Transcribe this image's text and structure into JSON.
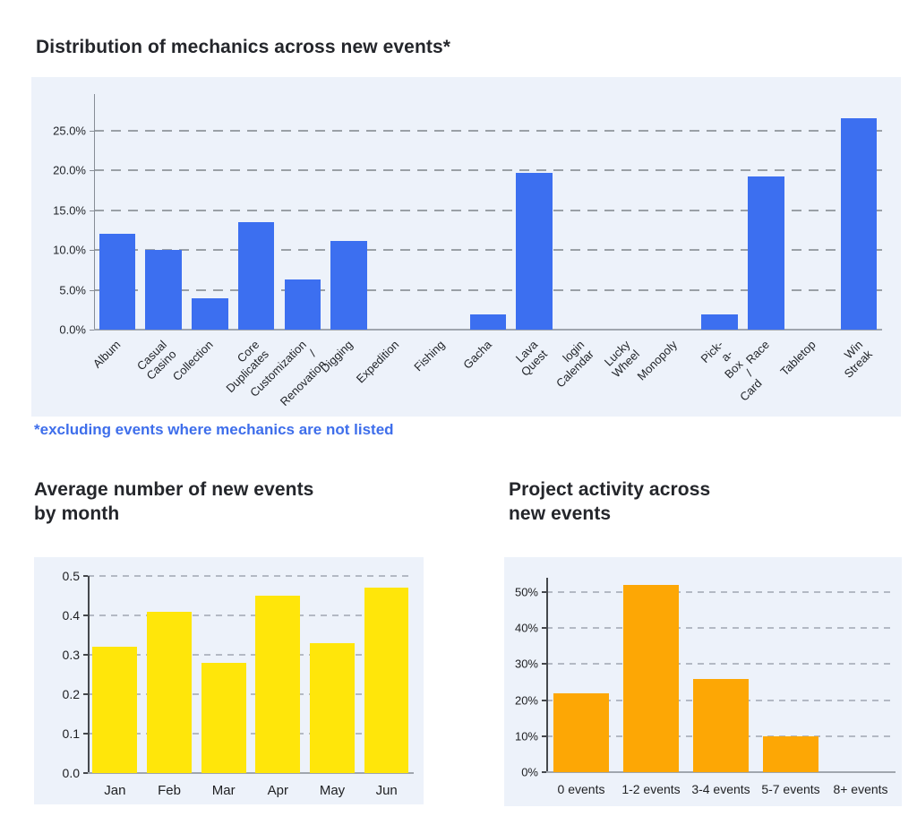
{
  "colors": {
    "panel_background": "#edf2fa",
    "bar_blue": "#3c6ff0",
    "bar_yellow": "#ffe60a",
    "bar_orange": "#fda705",
    "title_text": "#24262b",
    "footnote_blue": "#3e6eeb",
    "gridline_gray": "#9aa0a6",
    "axis_gray": "#878d96"
  },
  "sections": {
    "top": {
      "title": "Distribution of mechanics across new events*",
      "footnote": "*excluding events where mechanics are not listed"
    },
    "bottom_left": {
      "title_line1": "Average number of new events",
      "title_line2": "by month"
    },
    "bottom_right": {
      "title_line1": "Project activity across",
      "title_line2": "new events"
    }
  },
  "chart_data": [
    {
      "type": "bar",
      "title": "Distribution of mechanics across new events*",
      "categories": [
        "Album",
        "Casual Casino",
        "Collection",
        "Core Duplicates",
        "Customization /\nRenovation",
        "Digging",
        "Expedition",
        "Fishing",
        "Gacha",
        "Lava Quest",
        "login Calendar",
        "Lucky Wheel",
        "Monopoly",
        "Pick-a-Box / Card",
        "Race",
        "Tabletop",
        "Win Streak"
      ],
      "values": [
        12.1,
        10.0,
        3.9,
        13.5,
        6.3,
        11.2,
        0,
        0,
        1.9,
        19.7,
        0,
        0,
        0,
        1.9,
        19.2,
        0,
        26.6
      ],
      "unit": "%",
      "xlabel": "",
      "ylabel": "",
      "ylim": [
        0,
        29.6
      ],
      "yticks": [
        0,
        5,
        10,
        15,
        20,
        25
      ],
      "ytick_labels": [
        "0.0%",
        "5.0%",
        "10.0%",
        "15.0%",
        "20.0%",
        "25.0%"
      ],
      "bar_color": "#3c6ff0",
      "grid": "dashed-horizontal",
      "legend": "none"
    },
    {
      "type": "bar",
      "title": "Average number of new events by month",
      "categories": [
        "Jan",
        "Feb",
        "Mar",
        "Apr",
        "May",
        "Jun"
      ],
      "values": [
        0.32,
        0.41,
        0.28,
        0.45,
        0.33,
        0.47
      ],
      "unit": "",
      "xlabel": "",
      "ylabel": "",
      "ylim": [
        0,
        0.5
      ],
      "yticks": [
        0,
        0.1,
        0.2,
        0.3,
        0.4,
        0.5
      ],
      "ytick_labels": [
        "0.0",
        "0.1",
        "0.2",
        "0.3",
        "0.4",
        "0.5"
      ],
      "bar_color": "#ffe60a",
      "grid": "dashed-horizontal",
      "legend": "none"
    },
    {
      "type": "bar",
      "title": "Project activity across new events",
      "categories": [
        "0 events",
        "1-2 events",
        "3-4 events",
        "5-7 events",
        "8+ events"
      ],
      "values": [
        22,
        52,
        26,
        10,
        0
      ],
      "unit": "%",
      "xlabel": "",
      "ylabel": "",
      "ylim": [
        0,
        54
      ],
      "yticks": [
        0,
        10,
        20,
        30,
        40,
        50
      ],
      "ytick_labels": [
        "0%",
        "10%",
        "20%",
        "30%",
        "40%",
        "50%"
      ],
      "bar_color": "#fda705",
      "grid": "dashed-horizontal",
      "legend": "none"
    }
  ]
}
